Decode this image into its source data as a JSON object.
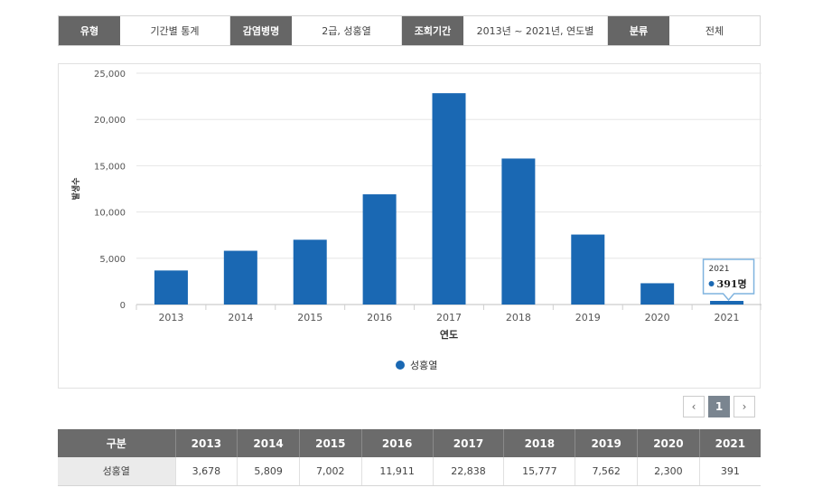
{
  "filters": [
    {
      "label": "유형",
      "value": "기간별 통계"
    },
    {
      "label": "감염병명",
      "value": "2급, 성홍열"
    },
    {
      "label": "조회기간",
      "value": "2013년 ~ 2021년, 연도별"
    },
    {
      "label": "분류",
      "value": "전체"
    }
  ],
  "chart_data": {
    "type": "bar",
    "xlabel": "연도",
    "ylabel": "발생수",
    "ylim": [
      0,
      25000
    ],
    "yticks": [
      0,
      5000,
      10000,
      15000,
      20000,
      25000
    ],
    "ytick_labels": [
      "0",
      "5,000",
      "10,000",
      "15,000",
      "20,000",
      "25,000"
    ],
    "categories": [
      "2013",
      "2014",
      "2015",
      "2016",
      "2017",
      "2018",
      "2019",
      "2020",
      "2021"
    ],
    "series": [
      {
        "name": "성홍열",
        "values": [
          3678,
          5809,
          7002,
          11911,
          22838,
          15777,
          7562,
          2300,
          391
        ]
      }
    ],
    "tooltip": {
      "category": "2021",
      "value_text": "391명"
    },
    "legend_position": "bottom-center",
    "grid": true,
    "color": "#1a68b3"
  },
  "pagination": {
    "prev": "‹",
    "current": "1",
    "next": "›"
  },
  "table": {
    "corner": "구분",
    "years": [
      "2013",
      "2014",
      "2015",
      "2016",
      "2017",
      "2018",
      "2019",
      "2020",
      "2021"
    ],
    "row_label": "성홍열",
    "values": [
      "3,678",
      "5,809",
      "7,002",
      "11,911",
      "22,838",
      "15,777",
      "7,562",
      "2,300",
      "391"
    ]
  }
}
